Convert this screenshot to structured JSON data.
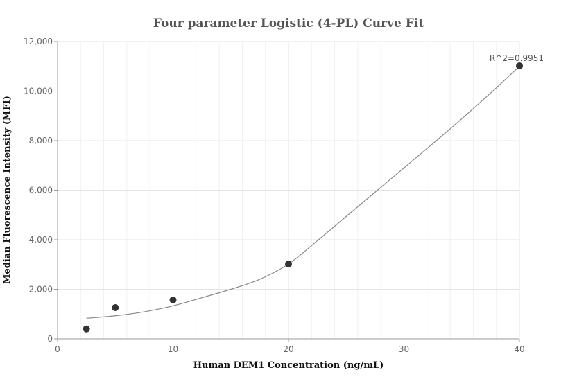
{
  "chart_data": {
    "type": "scatter",
    "title": "Four parameter Logistic (4-PL) Curve Fit",
    "xlabel": "Human DEM1 Concentration (ng/mL)",
    "ylabel": "Median Fluorescence Intensity (MFI)",
    "xlim": [
      0,
      40
    ],
    "ylim": [
      0,
      12000
    ],
    "x_ticks": [
      0,
      10,
      20,
      30,
      40
    ],
    "x_tick_labels": [
      "0",
      "10",
      "20",
      "30",
      "40"
    ],
    "y_ticks": [
      0,
      2000,
      4000,
      6000,
      8000,
      10000,
      12000
    ],
    "y_tick_labels": [
      "0",
      "2,000",
      "4,000",
      "6,000",
      "8,000",
      "10,000",
      "12,000"
    ],
    "grid": true,
    "series": [
      {
        "kind": "points",
        "x": [
          2.5,
          5,
          10,
          20,
          40
        ],
        "y": [
          400,
          1260,
          1570,
          3020,
          11020
        ],
        "color": "#333333"
      },
      {
        "kind": "fit-curve",
        "x": [
          2.5,
          5,
          7.5,
          10,
          12.5,
          15,
          17.5,
          20,
          22.5,
          25,
          27.5,
          30,
          32.5,
          35,
          37.5,
          40
        ],
        "y": [
          830,
          930,
          1090,
          1330,
          1660,
          2000,
          2400,
          3020,
          3960,
          4940,
          5920,
          6900,
          7880,
          8880,
          9920,
          11000
        ],
        "color": "#888888"
      }
    ],
    "annotations": [
      {
        "text": "R^2=0.9951",
        "x": 40,
        "y": 11020
      }
    ]
  }
}
